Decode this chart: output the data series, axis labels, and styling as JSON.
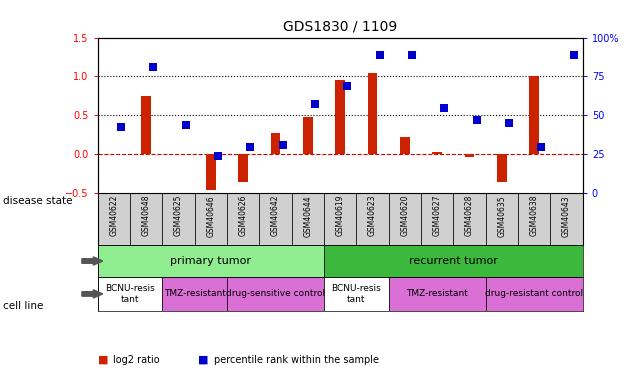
{
  "title": "GDS1830 / 1109",
  "samples": [
    "GSM40622",
    "GSM40648",
    "GSM40625",
    "GSM40646",
    "GSM40626",
    "GSM40642",
    "GSM40644",
    "GSM40619",
    "GSM40623",
    "GSM40620",
    "GSM40627",
    "GSM40628",
    "GSM40635",
    "GSM40638",
    "GSM40643"
  ],
  "log2_ratio": [
    0.0,
    0.75,
    0.0,
    -0.45,
    -0.35,
    0.28,
    0.48,
    0.95,
    1.05,
    0.22,
    0.03,
    -0.03,
    -0.35,
    1.0,
    0.0
  ],
  "percentile_rank_left": [
    0.35,
    1.12,
    0.38,
    -0.02,
    0.1,
    0.12,
    0.65,
    0.88,
    1.28,
    1.27,
    0.6,
    0.44,
    0.4,
    0.1,
    1.27
  ],
  "disease_state_groups": [
    {
      "label": "primary tumor",
      "start": 0,
      "end": 7,
      "color": "#90ee90"
    },
    {
      "label": "recurrent tumor",
      "start": 7,
      "end": 15,
      "color": "#3cb83c"
    }
  ],
  "cell_line_groups": [
    {
      "label": "BCNU-resis\ntant",
      "start": 0,
      "end": 2,
      "color": "#ffffff"
    },
    {
      "label": "TMZ-resistant",
      "start": 2,
      "end": 4,
      "color": "#ee82ee"
    },
    {
      "label": "drug-sensitive control",
      "start": 4,
      "end": 7,
      "color": "#ee82ee"
    },
    {
      "label": "BCNU-resis\ntant",
      "start": 7,
      "end": 9,
      "color": "#ffffff"
    },
    {
      "label": "TMZ-resistant",
      "start": 9,
      "end": 12,
      "color": "#ee82ee"
    },
    {
      "label": "drug-resistant control",
      "start": 12,
      "end": 15,
      "color": "#ee82ee"
    }
  ],
  "bar_color": "#cc2200",
  "dot_color": "#0000cc",
  "left_ylim": [
    -0.5,
    1.5
  ],
  "right_ylim": [
    0,
    100
  ],
  "left_yticks": [
    -0.5,
    0.0,
    0.5,
    1.0,
    1.5
  ],
  "right_yticks": [
    0,
    25,
    50,
    75,
    100
  ],
  "hlines": [
    0.0,
    0.5,
    1.0
  ],
  "hline_styles": [
    "--",
    ":",
    ":"
  ],
  "hline_colors": [
    "#cc0000",
    "#000000",
    "#000000"
  ],
  "background_color": "#ffffff",
  "sample_box_color": "#d0d0d0"
}
